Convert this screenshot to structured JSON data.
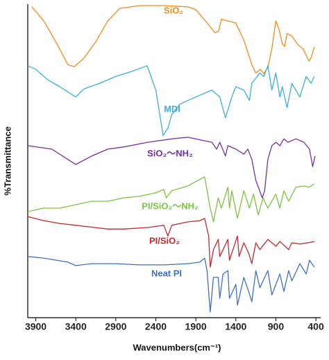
{
  "chart_data": {
    "type": "line",
    "x_label": "Wavenumbers(cm⁻¹)",
    "y_label": "%Transmittance",
    "xlim": [
      4000,
      340
    ],
    "xticks": [
      3900,
      3400,
      2900,
      2400,
      1900,
      1400,
      900,
      400
    ],
    "ylim": [
      0,
      100
    ],
    "series": [
      {
        "name": "SiO₂",
        "color": "#f28a1e",
        "x": [
          3950,
          3800,
          3650,
          3500,
          3420,
          3300,
          3150,
          3000,
          2850,
          2600,
          2300,
          2000,
          1900,
          1750,
          1660,
          1615,
          1580,
          1500,
          1400,
          1300,
          1200,
          1150,
          1094,
          1050,
          1000,
          950,
          900,
          860,
          820,
          790,
          760,
          700,
          620,
          560,
          487,
          460,
          420
        ],
        "values": [
          99.6,
          95.1,
          88.4,
          81.1,
          80.4,
          83.1,
          88.4,
          95.1,
          99.1,
          100,
          100,
          99.6,
          98.7,
          94.2,
          91.3,
          91.8,
          95.6,
          95.1,
          94.4,
          88.9,
          81.1,
          78.4,
          79.6,
          78.2,
          80.2,
          86.2,
          95.1,
          92.4,
          87.8,
          86.9,
          91.1,
          90.2,
          87.3,
          86.2,
          82.2,
          83.3,
          86.7
        ]
      },
      {
        "name": "MDI",
        "color": "#3aaed8",
        "x": [
          4000,
          3900,
          3750,
          3600,
          3400,
          3300,
          3100,
          2900,
          2700,
          2508,
          2400,
          2350,
          2309,
          2250,
          2200,
          2100,
          2000,
          1900,
          1800,
          1700,
          1600,
          1530,
          1450,
          1400,
          1300,
          1230,
          1200,
          1100,
          1050,
          1000,
          950,
          900,
          850,
          820,
          760,
          700,
          650,
          600,
          520,
          460,
          420
        ],
        "values": [
          80.7,
          79.6,
          76.2,
          74,
          70.7,
          73.3,
          75.1,
          77.3,
          78.9,
          80.7,
          72.9,
          65.1,
          58.4,
          60.7,
          65.1,
          68.4,
          69.6,
          70.7,
          71.8,
          72.9,
          70.7,
          64,
          70.7,
          74,
          72.9,
          69.6,
          75.1,
          78.4,
          77.3,
          80.7,
          72.9,
          78.4,
          70.7,
          74,
          67.3,
          75.1,
          72.9,
          70.7,
          77.3,
          75.1,
          77.3
        ]
      },
      {
        "name": "SiO₂～NH₂",
        "color": "#7030a0",
        "x": [
          4000,
          3700,
          3500,
          3400,
          3200,
          3000,
          2800,
          2500,
          2200,
          2000,
          1900,
          1700,
          1640,
          1600,
          1530,
          1500,
          1400,
          1300,
          1250,
          1200,
          1150,
          1070,
          1040,
          1000,
          950,
          900,
          850,
          800,
          750,
          650,
          550,
          480,
          440,
          410
        ],
        "values": [
          55.1,
          54,
          50.7,
          49.1,
          51.8,
          54,
          54.7,
          56.2,
          57.3,
          57.8,
          57.3,
          56.2,
          54,
          56.2,
          51.8,
          55.1,
          54,
          52.4,
          54,
          50.7,
          44,
          38.4,
          40.7,
          50.7,
          55.1,
          56.2,
          55.1,
          57.3,
          56.2,
          57.3,
          56.2,
          54,
          48.4,
          51.8
        ]
      },
      {
        "name": "PI/SiO₂～NH₂",
        "color": "#7dc242",
        "x": [
          4000,
          3800,
          3600,
          3400,
          3200,
          3000,
          2800,
          2600,
          2400,
          2300,
          2270,
          2200,
          2000,
          1900,
          1790,
          1720,
          1680,
          1620,
          1580,
          1500,
          1480,
          1450,
          1380,
          1300,
          1230,
          1180,
          1120,
          1060,
          1000,
          900,
          850,
          800,
          740,
          650,
          550,
          480,
          420
        ],
        "values": [
          34,
          35.1,
          35.1,
          36.2,
          37.3,
          37.3,
          38.4,
          38.9,
          40,
          41.1,
          38.4,
          40.7,
          42.2,
          43.6,
          45.1,
          35.1,
          30.7,
          38.4,
          35.1,
          41.8,
          35.1,
          40.7,
          31.8,
          40.7,
          35.1,
          39.6,
          32.9,
          38.4,
          35.1,
          39.6,
          35.1,
          40.7,
          37.3,
          41.8,
          42.2,
          41.8,
          42.9
        ]
      },
      {
        "name": "PI/SiO₂",
        "color": "#c0282d",
        "x": [
          4000,
          3800,
          3600,
          3400,
          3000,
          2800,
          2500,
          2300,
          2250,
          2200,
          2000,
          1850,
          1790,
          1740,
          1720,
          1680,
          1620,
          1600,
          1500,
          1480,
          1380,
          1360,
          1300,
          1240,
          1200,
          1150,
          1100,
          1000,
          900,
          850,
          740,
          700,
          600,
          500,
          420
        ],
        "values": [
          32.4,
          31.1,
          30.2,
          29.6,
          28.4,
          28.4,
          28.9,
          29.6,
          26.2,
          29.6,
          30.7,
          31.1,
          31.8,
          26.2,
          16.2,
          21.8,
          25.1,
          19.6,
          25.1,
          18.4,
          26.2,
          19.6,
          24,
          20.7,
          17.3,
          24,
          21.8,
          25.1,
          22.9,
          24.4,
          21.8,
          24,
          23.6,
          24,
          24.4
        ]
      },
      {
        "name": "Neat PI",
        "color": "#3f6fc4",
        "x": [
          4000,
          3800,
          3500,
          3400,
          3200,
          2900,
          2600,
          2300,
          2000,
          1850,
          1790,
          1760,
          1740,
          1720,
          1680,
          1620,
          1600,
          1560,
          1500,
          1480,
          1400,
          1380,
          1300,
          1240,
          1200,
          1150,
          1100,
          1000,
          950,
          850,
          800,
          740,
          700,
          600,
          520,
          480,
          420
        ],
        "values": [
          19.6,
          19.1,
          17.8,
          16.7,
          17.3,
          17.3,
          16.9,
          16.9,
          17.3,
          17.8,
          19.1,
          15.1,
          8.4,
          1.8,
          12.9,
          12.9,
          6.2,
          14,
          15.1,
          6.2,
          10.7,
          4,
          12.9,
          8.4,
          5.1,
          15.1,
          9.6,
          15.1,
          7.3,
          14,
          8.4,
          15.1,
          11.8,
          17.3,
          14,
          18.4,
          16.2
        ]
      }
    ]
  }
}
